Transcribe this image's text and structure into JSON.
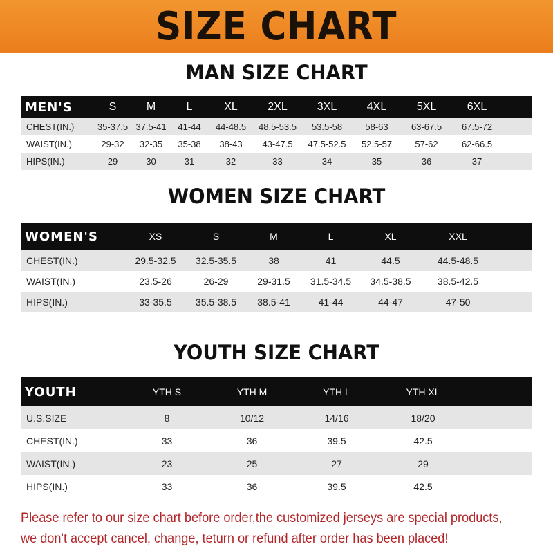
{
  "title": "SIZE CHART",
  "men": {
    "title": "MAN SIZE CHART",
    "header": [
      "MEN'S",
      "S",
      "M",
      "L",
      "XL",
      "2XL",
      "3XL",
      "4XL",
      "5XL",
      "6XL"
    ],
    "rows": [
      [
        "CHEST(IN.)",
        "35-37.5",
        "37.5-41",
        "41-44",
        "44-48.5",
        "48.5-53.5",
        "53.5-58",
        "58-63",
        "63-67.5",
        "67.5-72"
      ],
      [
        "WAIST(IN.)",
        "29-32",
        "32-35",
        "35-38",
        "38-43",
        "43-47.5",
        "47.5-52.5",
        "52.5-57",
        "57-62",
        "62-66.5"
      ],
      [
        "HIPS(IN.)",
        "29",
        "30",
        "31",
        "32",
        "33",
        "34",
        "35",
        "36",
        "37"
      ]
    ]
  },
  "women": {
    "title": "WOMEN SIZE CHART",
    "header": [
      "WOMEN'S",
      "XS",
      "S",
      "M",
      "L",
      "XL",
      "XXL"
    ],
    "rows": [
      [
        "CHEST(IN.)",
        "29.5-32.5",
        "32.5-35.5",
        "38",
        "41",
        "44.5",
        "44.5-48.5"
      ],
      [
        "WAIST(IN.)",
        "23.5-26",
        "26-29",
        "29-31.5",
        "31.5-34.5",
        "34.5-38.5",
        "38.5-42.5"
      ],
      [
        "HIPS(IN.)",
        "33-35.5",
        "35.5-38.5",
        "38.5-41",
        "41-44",
        "44-47",
        "47-50"
      ]
    ]
  },
  "youth": {
    "title": "YOUTH SIZE CHART",
    "header": [
      "YOUTH",
      "YTH S",
      "YTH M",
      "YTH L",
      "YTH XL"
    ],
    "rows": [
      [
        "U.S.SIZE",
        "8",
        "10/12",
        "14/16",
        "18/20"
      ],
      [
        "CHEST(IN.)",
        "33",
        "36",
        "39.5",
        "42.5"
      ],
      [
        "WAIST(IN.)",
        "23",
        "25",
        "27",
        "29"
      ],
      [
        "HIPS(IN.)",
        "33",
        "36",
        "39.5",
        "42.5"
      ]
    ]
  },
  "note": [
    "Please refer to our size chart before order,the customized jerseys are special products,",
    "we don't accept cancel, change, teturn or refund after order has been placed!"
  ],
  "colors": {
    "banner": "#ef8a27",
    "header_row": "#0e0e0e",
    "stripe": "#e5e5e5",
    "note": "#b3262a"
  }
}
